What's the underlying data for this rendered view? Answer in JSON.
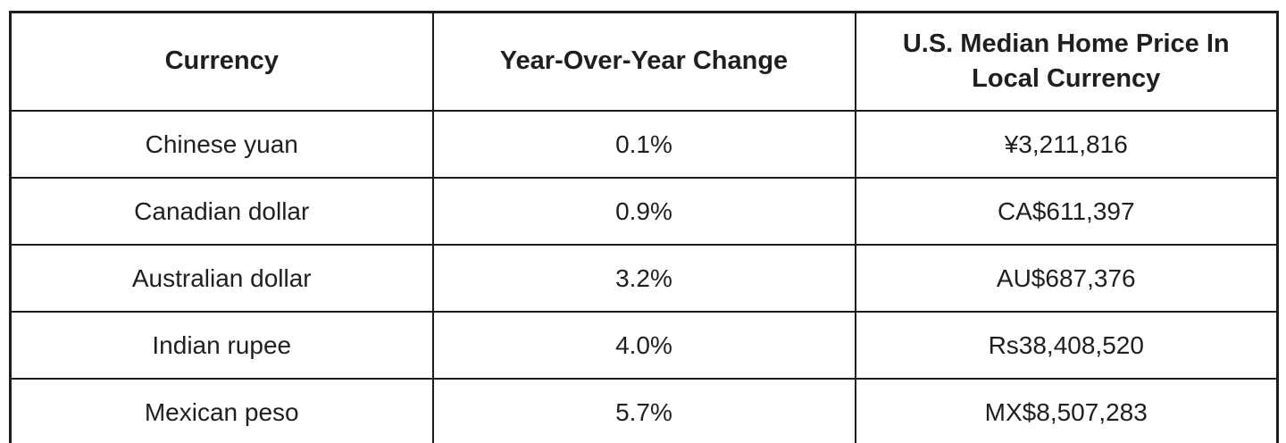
{
  "chart_data": {
    "type": "table",
    "title": "",
    "columns": [
      "Currency",
      "Year-Over-Year Change",
      "U.S. Median Home Price In Local Currency"
    ],
    "rows": [
      [
        "Chinese yuan",
        "0.1%",
        "¥3,211,816"
      ],
      [
        "Canadian dollar",
        "0.9%",
        "CA$611,397"
      ],
      [
        "Australian dollar",
        "3.2%",
        "AU$687,376"
      ],
      [
        "Indian rupee",
        "4.0%",
        "Rs38,408,520"
      ],
      [
        "Mexican peso",
        "5.7%",
        "MX$8,507,283"
      ]
    ],
    "style": {
      "border_color": "#1c1c1c",
      "text_color": "#1f1f1f",
      "background_color": "#ffffff",
      "header_bold": true,
      "text_align": "center"
    }
  }
}
